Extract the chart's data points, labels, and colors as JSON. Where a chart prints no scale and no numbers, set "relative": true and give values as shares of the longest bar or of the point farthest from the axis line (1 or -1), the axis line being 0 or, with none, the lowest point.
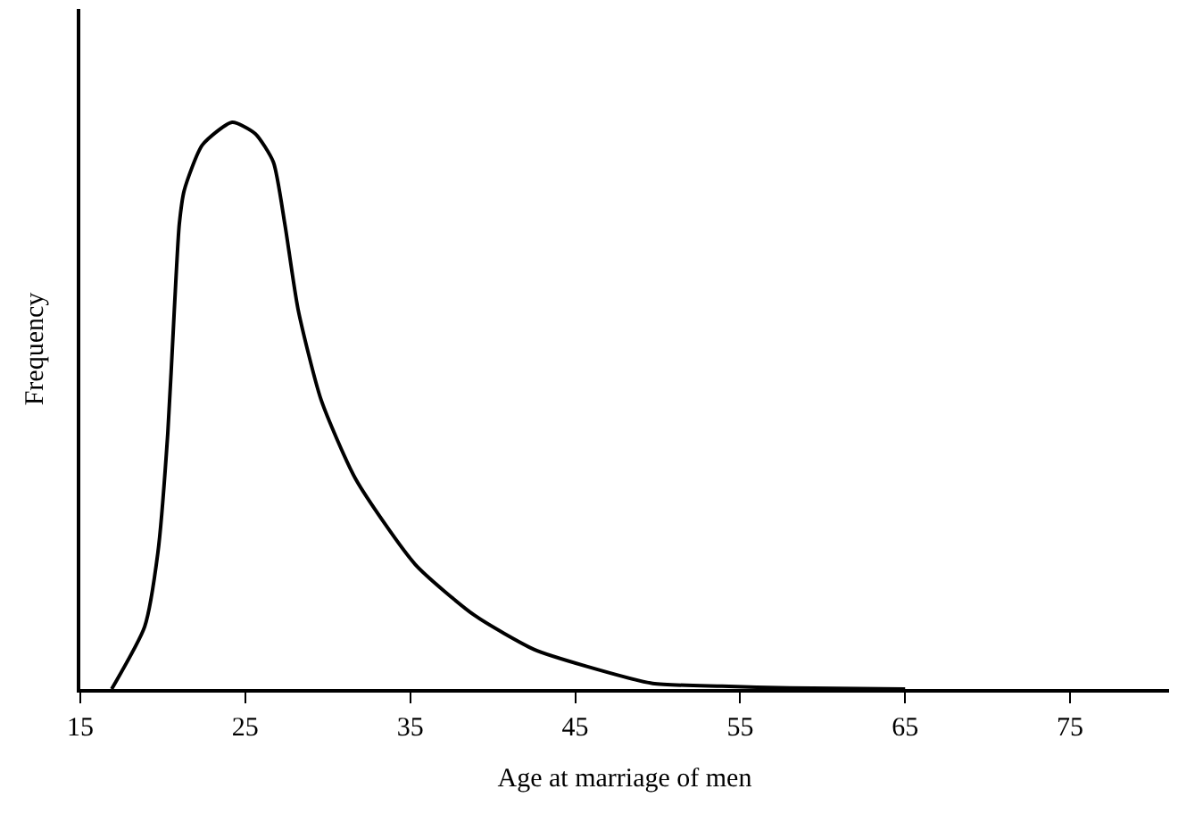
{
  "chart_data": {
    "type": "line",
    "relative": true,
    "xlabel": "Age at marriage of men",
    "ylabel": "Frequency",
    "xlim": [
      15,
      81
    ],
    "xticks": [
      15,
      25,
      35,
      45,
      55,
      65,
      75
    ],
    "marker": "none",
    "line_style": "solid",
    "series": [
      {
        "color": "#000000",
        "x": [
          16.9,
          18.9,
          19.7,
          20.3,
          20.7,
          21.0,
          21.3,
          22.4,
          24.2,
          25.6,
          26.7,
          27.4,
          28.2,
          29.6,
          31.7,
          35.3,
          38.9,
          42.5,
          45.7,
          49.7,
          53.9,
          58,
          65
        ],
        "values": [
          0,
          0.11,
          0.24,
          0.45,
          0.67,
          0.82,
          0.88,
          0.96,
          1,
          0.98,
          0.93,
          0.82,
          0.67,
          0.51,
          0.37,
          0.22,
          0.13,
          0.07,
          0.04,
          0.01,
          0.005,
          0.002,
          0
        ]
      }
    ]
  }
}
